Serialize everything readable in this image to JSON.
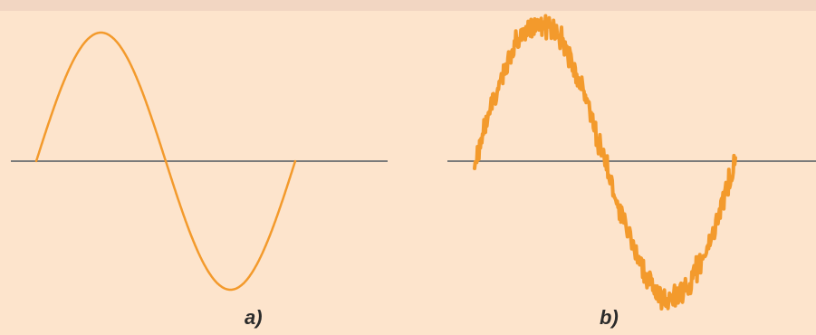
{
  "panels": [
    {
      "label": "a)",
      "signal": "clean-sine-wave",
      "cycles": 1,
      "noise": 0
    },
    {
      "label": "b)",
      "signal": "noisy-sine-wave",
      "cycles": 1,
      "noise": 0.08
    }
  ],
  "colors": {
    "background": "#fde4cc",
    "top_band": "#f2d6c2",
    "wave": "#f39a2c",
    "axis": "#7a7a7a",
    "caption": "#2b2b2b"
  }
}
